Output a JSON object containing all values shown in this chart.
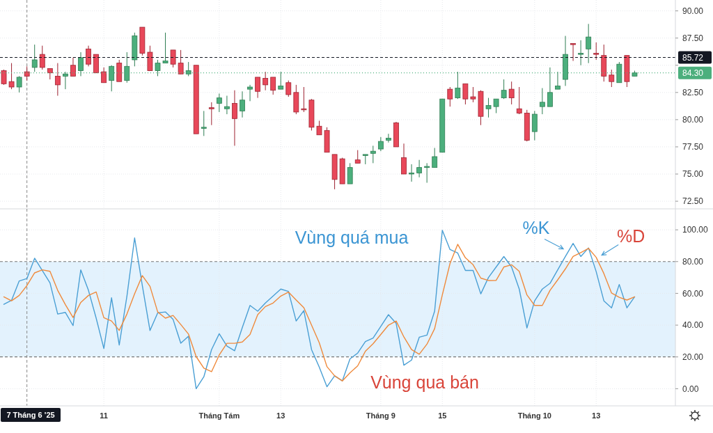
{
  "chart_data": [
    {
      "type": "candlestick",
      "categories": [
        null,
        null,
        null,
        "7 Tháng 6 '25",
        null,
        null,
        null,
        null,
        null,
        null,
        null,
        null,
        null,
        "11",
        null,
        null,
        null,
        null,
        null,
        null,
        null,
        null,
        null,
        null,
        null,
        null,
        null,
        null,
        "Tháng Tám",
        null,
        null,
        null,
        null,
        null,
        null,
        null,
        "13",
        null,
        null,
        null,
        null,
        null,
        null,
        null,
        null,
        null,
        null,
        null,
        null,
        "Tháng 9",
        null,
        null,
        null,
        null,
        null,
        null,
        null,
        "15",
        null,
        null,
        null,
        null,
        null,
        null,
        null,
        null,
        null,
        null,
        null,
        "Tháng 10",
        null,
        null,
        null,
        null,
        null,
        null,
        null,
        "13",
        null,
        null,
        null,
        null,
        null
      ],
      "ohlc": [
        [
          84.5,
          84.6,
          83.2,
          83.3
        ],
        [
          83.5,
          85.2,
          82.8,
          83.0
        ],
        [
          83.0,
          84.0,
          82.5,
          83.9
        ],
        [
          84.4,
          84.9,
          83.6,
          84.0
        ],
        [
          84.8,
          86.9,
          84.4,
          85.5
        ],
        [
          86.0,
          86.8,
          84.6,
          84.8
        ],
        [
          84.7,
          84.7,
          83.7,
          84.3
        ],
        [
          84.0,
          85.2,
          82.2,
          83.2
        ],
        [
          84.0,
          84.4,
          82.8,
          84.2
        ],
        [
          85.0,
          85.7,
          84.0,
          84.0
        ],
        [
          84.5,
          86.2,
          84.0,
          85.7
        ],
        [
          86.5,
          86.8,
          84.9,
          85.1
        ],
        [
          86.0,
          86.0,
          84.3,
          84.3
        ],
        [
          84.4,
          84.8,
          83.4,
          83.4
        ],
        [
          83.6,
          85.0,
          82.6,
          84.9
        ],
        [
          85.2,
          85.5,
          83.5,
          83.5
        ],
        [
          83.6,
          86.2,
          83.4,
          84.9
        ],
        [
          85.5,
          88.0,
          84.9,
          87.7
        ],
        [
          88.5,
          88.5,
          85.9,
          86.1
        ],
        [
          86.2,
          86.8,
          84.5,
          84.5
        ],
        [
          84.5,
          85.5,
          84.0,
          85.2
        ],
        [
          85.2,
          88.0,
          85.2,
          85.4
        ],
        [
          86.4,
          86.4,
          84.8,
          85.1
        ],
        [
          85.2,
          86.4,
          84.2,
          84.2
        ],
        [
          84.2,
          85.3,
          84.0,
          84.5
        ],
        [
          85.0,
          85.0,
          78.7,
          78.7
        ],
        [
          79.2,
          80.8,
          78.5,
          79.3
        ],
        [
          81.1,
          81.6,
          79.5,
          81.0
        ],
        [
          81.5,
          82.4,
          80.7,
          82.0
        ],
        [
          81.0,
          82.2,
          80.5,
          81.2
        ],
        [
          81.5,
          82.7,
          77.6,
          80.1
        ],
        [
          80.8,
          82.6,
          80.2,
          81.8
        ],
        [
          82.8,
          83.2,
          81.7,
          83.0
        ],
        [
          83.9,
          83.9,
          82.0,
          82.6
        ],
        [
          83.8,
          84.4,
          82.7,
          83.2
        ],
        [
          83.9,
          83.9,
          82.3,
          82.7
        ],
        [
          82.8,
          84.4,
          82.8,
          83.1
        ],
        [
          83.4,
          83.6,
          82.1,
          82.3
        ],
        [
          82.5,
          83.2,
          80.5,
          80.7
        ],
        [
          81.0,
          83.0,
          80.7,
          80.9
        ],
        [
          81.8,
          81.9,
          79.0,
          79.3
        ],
        [
          79.4,
          79.9,
          78.6,
          78.6
        ],
        [
          79.0,
          79.3,
          77.0,
          77.0
        ],
        [
          76.8,
          76.8,
          73.6,
          74.5
        ],
        [
          76.4,
          76.5,
          74.1,
          74.1
        ],
        [
          74.1,
          76.0,
          74.1,
          75.6
        ],
        [
          76.3,
          77.2,
          76.0,
          76.0
        ],
        [
          76.7,
          76.8,
          75.9,
          76.8
        ],
        [
          76.9,
          77.6,
          76.0,
          77.1
        ],
        [
          77.3,
          78.4,
          77.1,
          78.0
        ],
        [
          78.1,
          78.7,
          77.9,
          78.3
        ],
        [
          79.7,
          79.8,
          77.5,
          77.5
        ],
        [
          76.5,
          77.8,
          75.0,
          75.0
        ],
        [
          75.0,
          75.9,
          74.3,
          75.1
        ],
        [
          75.1,
          76.3,
          74.7,
          75.6
        ],
        [
          75.6,
          76.0,
          74.2,
          75.7
        ],
        [
          75.6,
          77.4,
          75.6,
          76.6
        ],
        [
          77.0,
          81.9,
          77.0,
          81.9
        ],
        [
          82.8,
          83.0,
          81.2,
          81.9
        ],
        [
          82.0,
          84.4,
          81.9,
          82.9
        ],
        [
          83.3,
          83.3,
          81.4,
          81.9
        ],
        [
          82.1,
          83.0,
          81.6,
          81.9
        ],
        [
          82.6,
          82.7,
          79.5,
          80.3
        ],
        [
          81.0,
          82.0,
          80.2,
          81.3
        ],
        [
          81.2,
          81.9,
          80.6,
          81.9
        ],
        [
          82.0,
          83.7,
          81.9,
          82.7
        ],
        [
          82.8,
          83.5,
          81.4,
          82.0
        ],
        [
          81.0,
          83.0,
          80.5,
          80.6
        ],
        [
          80.6,
          80.9,
          78.0,
          78.1
        ],
        [
          78.9,
          80.8,
          78.1,
          80.5
        ],
        [
          81.2,
          82.9,
          80.5,
          81.6
        ],
        [
          81.2,
          84.8,
          81.2,
          82.5
        ],
        [
          82.8,
          84.4,
          82.8,
          83.1
        ],
        [
          83.7,
          87.7,
          83.1,
          86.0
        ],
        [
          87.0,
          87.0,
          85.4,
          86.9
        ],
        [
          86.0,
          87.3,
          85.0,
          86.1
        ],
        [
          86.5,
          88.8,
          85.2,
          87.6
        ],
        [
          86.1,
          87.1,
          85.5,
          86.0
        ],
        [
          85.9,
          86.9,
          83.5,
          84.0
        ],
        [
          84.1,
          84.6,
          83.0,
          83.5
        ],
        [
          83.4,
          85.3,
          83.4,
          85.1
        ],
        [
          85.9,
          85.9,
          83.0,
          83.5
        ],
        [
          84.0,
          84.5,
          84.0,
          84.3
        ]
      ],
      "ylim": [
        71.8,
        91.0
      ],
      "yticks": [
        {
          "value": 72.5,
          "label": "72.50"
        },
        {
          "value": 75,
          "label": "75.00"
        },
        {
          "value": 77.5,
          "label": "77.50"
        },
        {
          "value": 80,
          "label": "80.00"
        },
        {
          "value": 82.5,
          "label": "82.50"
        },
        {
          "value": 85,
          "label": null
        },
        {
          "value": 87.5,
          "label": "87.50"
        },
        {
          "value": 90,
          "label": "90.00"
        }
      ],
      "grid": true,
      "tick_labels": "y",
      "ref_lines": [
        {
          "axis": "y",
          "value": 85.72,
          "label": "85.72",
          "color": "#131722",
          "line_style": "dashed"
        },
        {
          "axis": "y",
          "value": 84.3,
          "label": "84.30",
          "color": "#4caf7d",
          "line_style": "dotted"
        },
        {
          "axis": "x",
          "value": "7 Tháng 6 '25",
          "color": "#888888",
          "line_style": "dashed"
        }
      ]
    },
    {
      "type": "line",
      "categories": [
        null,
        null,
        null,
        "7 Tháng 6 '25",
        null,
        null,
        null,
        null,
        null,
        null,
        null,
        null,
        null,
        "11",
        null,
        null,
        null,
        null,
        null,
        null,
        null,
        null,
        null,
        null,
        null,
        null,
        null,
        null,
        "Tháng Tám",
        null,
        null,
        null,
        null,
        null,
        null,
        null,
        "13",
        null,
        null,
        null,
        null,
        null,
        null,
        null,
        null,
        null,
        null,
        null,
        null,
        "Tháng 9",
        null,
        null,
        null,
        null,
        null,
        null,
        null,
        "15",
        null,
        null,
        null,
        null,
        null,
        null,
        null,
        null,
        null,
        null,
        null,
        "Tháng 10",
        null,
        null,
        null,
        null,
        null,
        null,
        null,
        "13",
        null,
        null,
        null,
        null,
        null
      ],
      "series": [
        {
          "name": "%K",
          "color": "#4a9fd4",
          "values": [
            53.1,
            55.6,
            67.8,
            69.3,
            82.1,
            74.4,
            66.6,
            47.0,
            48.0,
            39.7,
            74.8,
            61.9,
            44.4,
            25.3,
            57.2,
            27.5,
            58.3,
            94.9,
            64.9,
            36.6,
            47.7,
            48.3,
            43.6,
            28.6,
            33.0,
            0.0,
            7.5,
            24.6,
            34.6,
            26.8,
            23.9,
            38.5,
            52.4,
            48.8,
            53.9,
            58.3,
            62.7,
            61.2,
            42.6,
            49.1,
            24.6,
            13.6,
            1.2,
            8.1,
            4.9,
            18.8,
            22.4,
            29.7,
            31.9,
            39.2,
            46.6,
            41.1,
            14.8,
            18.0,
            32.4,
            33.7,
            48.8,
            99.7,
            87.6,
            85.4,
            74.4,
            74.4,
            59.7,
            70.0,
            76.6,
            83.2,
            76.6,
            62.7,
            38.2,
            55.3,
            62.7,
            66.3,
            74.8,
            83.2,
            91.5,
            83.2,
            88.6,
            73.7,
            55.3,
            50.9,
            65.6,
            50.9,
            57.8
          ]
        },
        {
          "name": "%D",
          "color": "#ef8a3c",
          "values": [
            57.8,
            55.3,
            58.7,
            64.9,
            72.9,
            74.8,
            73.9,
            61.9,
            52.9,
            44.8,
            54.3,
            58.7,
            60.9,
            44.7,
            42.6,
            36.7,
            47.0,
            59.7,
            71.2,
            64.4,
            48.3,
            44.4,
            46.1,
            40.4,
            34.4,
            20.2,
            12.9,
            10.7,
            21.2,
            28.6,
            28.6,
            29.4,
            34.1,
            46.6,
            51.7,
            53.9,
            58.3,
            60.8,
            55.8,
            51.0,
            40.0,
            29.0,
            13.9,
            8.1,
            4.9,
            10.0,
            14.4,
            23.6,
            28.3,
            34.1,
            40.0,
            42.6,
            32.6,
            24.6,
            21.7,
            28.0,
            37.8,
            59.0,
            78.8,
            90.9,
            82.4,
            78.0,
            69.6,
            68.1,
            68.2,
            76.6,
            78.0,
            73.9,
            59.0,
            52.4,
            52.4,
            61.9,
            68.5,
            75.4,
            83.2,
            85.7,
            88.3,
            82.7,
            72.5,
            60.2,
            57.5,
            55.8,
            57.8
          ]
        }
      ],
      "ylim": [
        -10.8,
        113.2
      ],
      "yticks": [
        {
          "value": 0,
          "label": "0.00"
        },
        {
          "value": 20,
          "label": "20.00"
        },
        {
          "value": 40,
          "label": "40.00"
        },
        {
          "value": 60,
          "label": "60.00"
        },
        {
          "value": 80,
          "label": "80.00"
        },
        {
          "value": 100,
          "label": "100.00"
        }
      ],
      "grid": true,
      "ref_lines": [
        {
          "axis": "x",
          "value": "7 Tháng 6 '25",
          "color": "#888888",
          "line_style": "dashed"
        }
      ],
      "bands": [
        {
          "axis": "y",
          "from": 20,
          "to": 80,
          "color": "#e3f2fd"
        }
      ],
      "annotations": [
        "Vùng quá mua",
        "Vùng qua bán"
      ]
    }
  ]
}
